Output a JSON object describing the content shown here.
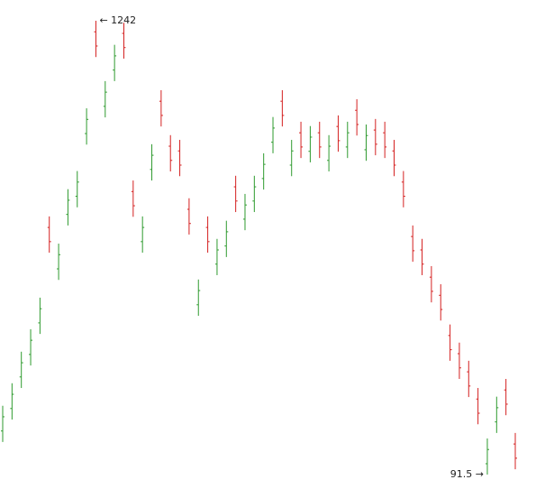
{
  "chart_data": {
    "type": "ohlc",
    "open": [
      202,
      259,
      339,
      396,
      476,
      718,
      613,
      751,
      797,
      956,
      1214,
      1025,
      1117,
      1210,
      809,
      682,
      865,
      1038,
      924,
      912,
      764,
      522,
      718,
      625,
      671,
      821,
      739,
      785,
      842,
      934,
      1038,
      876,
      958,
      911,
      958,
      888,
      974,
      922,
      1015,
      915,
      965,
      958,
      912,
      833,
      695,
      661,
      592,
      546,
      444,
      398,
      352,
      283,
      119,
      225,
      306,
      169
    ],
    "high": [
      266,
      323,
      403,
      460,
      540,
      746,
      677,
      815,
      861,
      1020,
      1242,
      1089,
      1181,
      1237,
      837,
      746,
      929,
      1066,
      952,
      940,
      792,
      586,
      746,
      689,
      735,
      849,
      803,
      849,
      906,
      998,
      1066,
      940,
      986,
      975,
      986,
      952,
      1002,
      986,
      1043,
      979,
      993,
      986,
      940,
      861,
      723,
      689,
      620,
      574,
      472,
      426,
      380,
      311,
      183,
      289,
      334,
      197
    ],
    "low": [
      174,
      231,
      311,
      368,
      448,
      654,
      585,
      723,
      769,
      928,
      1150,
      997,
      1089,
      1146,
      745,
      654,
      837,
      974,
      860,
      848,
      700,
      494,
      654,
      597,
      643,
      757,
      711,
      757,
      814,
      906,
      974,
      848,
      894,
      883,
      894,
      860,
      910,
      894,
      951,
      887,
      901,
      894,
      848,
      769,
      631,
      597,
      528,
      482,
      380,
      334,
      288,
      219,
      91.5,
      197,
      242,
      105
    ],
    "close": [
      238,
      295,
      375,
      432,
      512,
      682,
      649,
      787,
      833,
      992,
      1178,
      1061,
      1153,
      1174,
      773,
      718,
      901,
      1002,
      888,
      876,
      728,
      558,
      682,
      661,
      707,
      785,
      775,
      821,
      878,
      970,
      1002,
      912,
      922,
      947,
      922,
      924,
      938,
      958,
      979,
      951,
      929,
      922,
      876,
      797,
      659,
      625,
      556,
      510,
      408,
      362,
      316,
      247,
      155,
      261,
      270,
      133
    ],
    "up_color": "#2e9a2e",
    "down_color": "#d42020",
    "annotations": [
      {
        "value": 1242,
        "label": "← 1242"
      },
      {
        "value": 91.5,
        "label": "91.5 →"
      }
    ]
  }
}
